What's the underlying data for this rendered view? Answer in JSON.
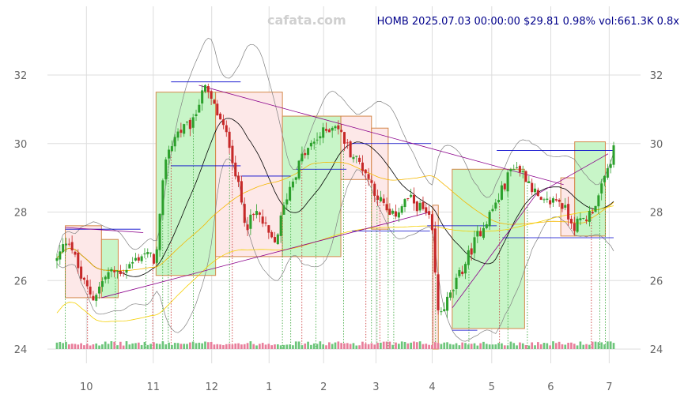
{
  "watermark": "cafata.com",
  "header": {
    "symbol": "HOMB",
    "datetime": "2025.07.03 00:00:00",
    "price": "$29.81",
    "change": "0.98%",
    "volume": "vol:661.3K",
    "ratio": "0.8x"
  },
  "colors": {
    "up": "#2ca02c",
    "down": "#c62828",
    "box_up_fill": "#c8f5c8",
    "box_down_fill": "#fde8e8",
    "box_border": "#d4884a",
    "header_text": "#00008b",
    "watermark": "#d0d0d0",
    "grid": "#dddddd",
    "axis_text": "#666666",
    "bollinger": "#808080",
    "ma_short": "#000000",
    "ma_mid": "#f5b700",
    "ma_long": "#f5d000",
    "trend": "#8b008b",
    "level": "#0000cc"
  },
  "chart_data": {
    "type": "candlestick",
    "title": "HOMB 2025.07.03 00:00:00 $29.81 0.98% vol:661.3K 0.8x",
    "ylim": [
      23.8,
      33.5
    ],
    "y_ticks": [
      24,
      26,
      28,
      30,
      32
    ],
    "x_ticks": [
      {
        "label": "10",
        "t": 0.053
      },
      {
        "label": "11",
        "t": 0.173
      },
      {
        "label": "12",
        "t": 0.278
      },
      {
        "label": "1",
        "t": 0.381
      },
      {
        "label": "2",
        "t": 0.479
      },
      {
        "label": "3",
        "t": 0.573
      },
      {
        "label": "4",
        "t": 0.674
      },
      {
        "label": "5",
        "t": 0.781
      },
      {
        "label": "6",
        "t": 0.887
      },
      {
        "label": "7",
        "t": 0.992
      }
    ],
    "anchors": [
      {
        "t": 0.0,
        "p": 26.6
      },
      {
        "t": 0.02,
        "p": 27.3
      },
      {
        "t": 0.045,
        "p": 26.0
      },
      {
        "t": 0.065,
        "p": 25.5
      },
      {
        "t": 0.09,
        "p": 26.2
      },
      {
        "t": 0.12,
        "p": 26.3
      },
      {
        "t": 0.155,
        "p": 26.8
      },
      {
        "t": 0.178,
        "p": 26.6
      },
      {
        "t": 0.195,
        "p": 29.6
      },
      {
        "t": 0.215,
        "p": 30.3
      },
      {
        "t": 0.245,
        "p": 30.6
      },
      {
        "t": 0.262,
        "p": 31.7
      },
      {
        "t": 0.285,
        "p": 31.0
      },
      {
        "t": 0.31,
        "p": 30.0
      },
      {
        "t": 0.34,
        "p": 27.6
      },
      {
        "t": 0.36,
        "p": 28.0
      },
      {
        "t": 0.39,
        "p": 27.0
      },
      {
        "t": 0.415,
        "p": 28.6
      },
      {
        "t": 0.44,
        "p": 29.6
      },
      {
        "t": 0.47,
        "p": 30.2
      },
      {
        "t": 0.5,
        "p": 30.6
      },
      {
        "t": 0.525,
        "p": 29.8
      },
      {
        "t": 0.55,
        "p": 29.3
      },
      {
        "t": 0.575,
        "p": 28.5
      },
      {
        "t": 0.6,
        "p": 27.8
      },
      {
        "t": 0.63,
        "p": 28.4
      },
      {
        "t": 0.655,
        "p": 28.1
      },
      {
        "t": 0.672,
        "p": 27.7
      },
      {
        "t": 0.685,
        "p": 25.0
      },
      {
        "t": 0.705,
        "p": 25.5
      },
      {
        "t": 0.73,
        "p": 26.4
      },
      {
        "t": 0.755,
        "p": 27.3
      },
      {
        "t": 0.79,
        "p": 28.3
      },
      {
        "t": 0.82,
        "p": 29.4
      },
      {
        "t": 0.845,
        "p": 29.0
      },
      {
        "t": 0.87,
        "p": 28.2
      },
      {
        "t": 0.9,
        "p": 28.4
      },
      {
        "t": 0.93,
        "p": 27.6
      },
      {
        "t": 0.955,
        "p": 27.9
      },
      {
        "t": 0.975,
        "p": 28.5
      },
      {
        "t": 1.0,
        "p": 29.81
      }
    ],
    "boxes": [
      {
        "t0": 0.015,
        "t1": 0.08,
        "lo": 25.5,
        "hi": 27.6,
        "dir": "down"
      },
      {
        "t0": 0.08,
        "t1": 0.11,
        "lo": 25.5,
        "hi": 27.2,
        "dir": "up"
      },
      {
        "t0": 0.178,
        "t1": 0.285,
        "lo": 26.15,
        "hi": 31.5,
        "dir": "up"
      },
      {
        "t0": 0.285,
        "t1": 0.405,
        "lo": 26.7,
        "hi": 31.5,
        "dir": "down"
      },
      {
        "t0": 0.405,
        "t1": 0.51,
        "lo": 26.7,
        "hi": 30.8,
        "dir": "up"
      },
      {
        "t0": 0.51,
        "t1": 0.565,
        "lo": 28.95,
        "hi": 30.8,
        "dir": "down"
      },
      {
        "t0": 0.565,
        "t1": 0.595,
        "lo": 27.5,
        "hi": 30.45,
        "dir": "down"
      },
      {
        "t0": 0.675,
        "t1": 0.685,
        "lo": 24.0,
        "hi": 28.2,
        "dir": "down"
      },
      {
        "t0": 0.71,
        "t1": 0.84,
        "lo": 24.6,
        "hi": 29.25,
        "dir": "up"
      },
      {
        "t0": 0.905,
        "t1": 0.93,
        "lo": 27.3,
        "hi": 29.0,
        "dir": "down"
      },
      {
        "t0": 0.93,
        "t1": 0.985,
        "lo": 27.3,
        "hi": 30.05,
        "dir": "up"
      }
    ],
    "levels": [
      {
        "t0": 0.015,
        "t1": 0.15,
        "p": 27.5
      },
      {
        "t0": 0.205,
        "t1": 0.33,
        "p": 31.8
      },
      {
        "t0": 0.205,
        "t1": 0.33,
        "p": 29.35
      },
      {
        "t0": 0.33,
        "t1": 0.42,
        "p": 29.05
      },
      {
        "t0": 0.43,
        "t1": 0.52,
        "p": 29.25
      },
      {
        "t0": 0.53,
        "t1": 0.672,
        "p": 30.0
      },
      {
        "t0": 0.53,
        "t1": 0.67,
        "p": 27.45
      },
      {
        "t0": 0.665,
        "t1": 0.79,
        "p": 27.6
      },
      {
        "t0": 0.71,
        "t1": 0.755,
        "p": 24.55
      },
      {
        "t0": 0.79,
        "t1": 1.0,
        "p": 29.8
      },
      {
        "t0": 0.8,
        "t1": 1.0,
        "p": 27.25
      }
    ],
    "trendlines": [
      {
        "t0": 0.015,
        "p0": 27.55,
        "t1": 0.155,
        "p1": 27.4
      },
      {
        "t0": 0.08,
        "p0": 25.5,
        "t1": 0.67,
        "p1": 28.0
      },
      {
        "t0": 0.255,
        "p0": 31.7,
        "t1": 0.91,
        "p1": 28.8
      },
      {
        "t0": 0.71,
        "p0": 25.2,
        "t1": 0.86,
        "p1": 28.5
      },
      {
        "t0": 0.86,
        "p0": 28.5,
        "t1": 0.99,
        "p1": 29.7
      }
    ],
    "signals": [
      0.015,
      0.055,
      0.105,
      0.16,
      0.172,
      0.19,
      0.2,
      0.205,
      0.245,
      0.31,
      0.315,
      0.405,
      0.42,
      0.44,
      0.465,
      0.515,
      0.555,
      0.565,
      0.575,
      0.58,
      0.595,
      0.605,
      0.675,
      0.68,
      0.74,
      0.795,
      0.81,
      0.845,
      0.96,
      0.975,
      0.985
    ]
  }
}
